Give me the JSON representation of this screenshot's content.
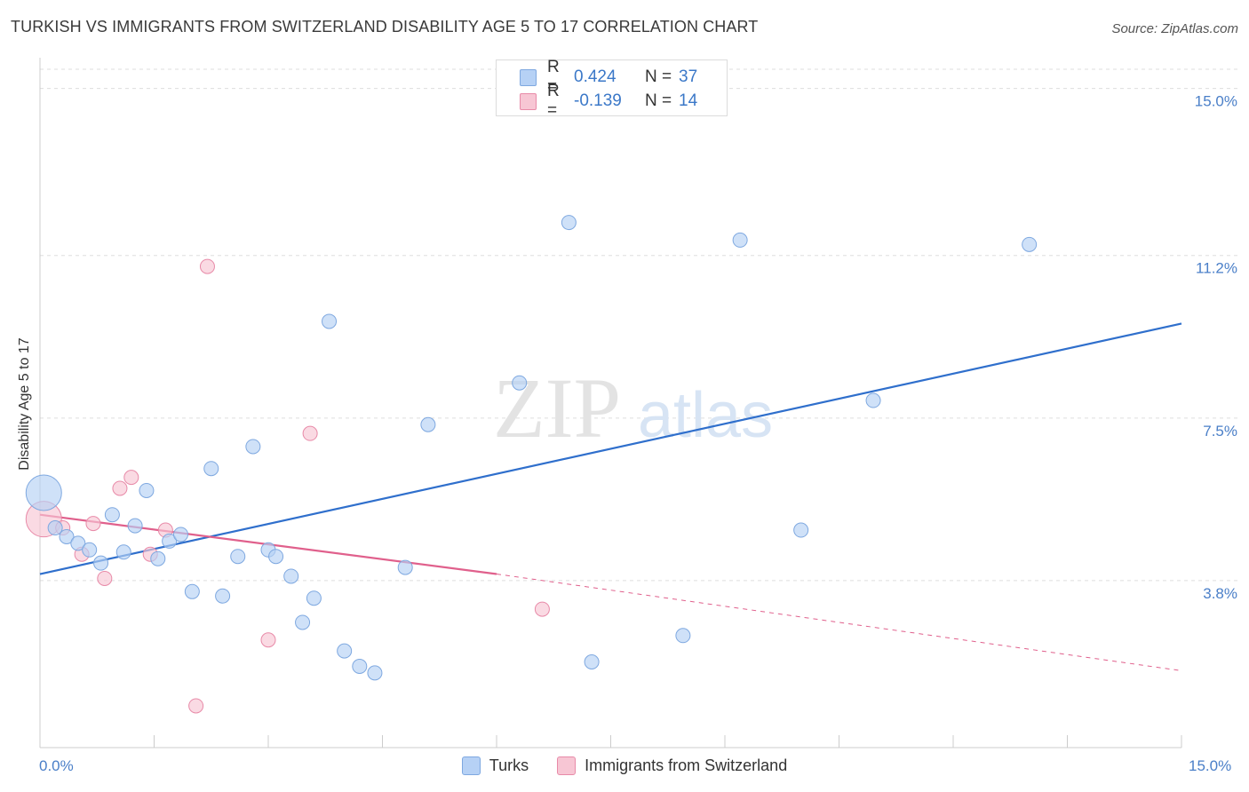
{
  "title": "TURKISH VS IMMIGRANTS FROM SWITZERLAND DISABILITY AGE 5 TO 17 CORRELATION CHART",
  "source": "Source: ZipAtlas.com",
  "watermark": {
    "zip": "ZIP",
    "atlas": "atlas"
  },
  "legend": {
    "rows": [
      {
        "r_label": "R =",
        "r_value": "0.424",
        "n_label": "N =",
        "n_value": "37"
      },
      {
        "r_label": "R =",
        "r_value": "-0.139",
        "n_label": "N =",
        "n_value": "14"
      }
    ]
  },
  "colors": {
    "turks_fill": "#b6d1f5",
    "turks_stroke": "#7ea8e0",
    "turks_line": "#2f6fcc",
    "swiss_fill": "#f7c6d4",
    "swiss_stroke": "#e88aa8",
    "swiss_line": "#e0608c",
    "tick_label": "#4a7fc8",
    "grid": "#dddddd"
  },
  "chart_data": {
    "type": "scatter",
    "title": "TURKISH VS IMMIGRANTS FROM SWITZERLAND DISABILITY AGE 5 TO 17 CORRELATION CHART",
    "xlabel": "",
    "ylabel": "Disability Age 5 to 17",
    "xlim": [
      0,
      15
    ],
    "ylim": [
      0,
      15.7
    ],
    "x_tick_labels": [
      "0.0%",
      "15.0%"
    ],
    "y_ticks": [
      {
        "value": 3.8,
        "label": "3.8%"
      },
      {
        "value": 7.5,
        "label": "7.5%"
      },
      {
        "value": 11.2,
        "label": "11.2%"
      },
      {
        "value": 15.0,
        "label": "15.0%"
      }
    ],
    "series": [
      {
        "name": "Turks",
        "r": 0.424,
        "n": 37,
        "points": [
          {
            "x": 0.05,
            "y": 5.8,
            "size": "large"
          },
          {
            "x": 0.2,
            "y": 5.0
          },
          {
            "x": 0.35,
            "y": 4.8
          },
          {
            "x": 0.5,
            "y": 4.65
          },
          {
            "x": 0.65,
            "y": 4.5
          },
          {
            "x": 0.8,
            "y": 4.2
          },
          {
            "x": 0.95,
            "y": 5.3
          },
          {
            "x": 1.1,
            "y": 4.45
          },
          {
            "x": 1.25,
            "y": 5.05
          },
          {
            "x": 1.4,
            "y": 5.85
          },
          {
            "x": 1.55,
            "y": 4.3
          },
          {
            "x": 1.7,
            "y": 4.7
          },
          {
            "x": 1.85,
            "y": 4.85
          },
          {
            "x": 2.0,
            "y": 3.55
          },
          {
            "x": 2.25,
            "y": 6.35
          },
          {
            "x": 2.4,
            "y": 3.45
          },
          {
            "x": 2.6,
            "y": 4.35
          },
          {
            "x": 2.8,
            "y": 6.85
          },
          {
            "x": 3.0,
            "y": 4.5
          },
          {
            "x": 3.1,
            "y": 4.35
          },
          {
            "x": 3.3,
            "y": 3.9
          },
          {
            "x": 3.45,
            "y": 2.85
          },
          {
            "x": 3.6,
            "y": 3.4
          },
          {
            "x": 3.8,
            "y": 9.7
          },
          {
            "x": 4.0,
            "y": 2.2
          },
          {
            "x": 4.2,
            "y": 1.85
          },
          {
            "x": 4.4,
            "y": 1.7
          },
          {
            "x": 4.8,
            "y": 4.1
          },
          {
            "x": 5.1,
            "y": 7.35
          },
          {
            "x": 6.3,
            "y": 8.3
          },
          {
            "x": 6.95,
            "y": 11.95
          },
          {
            "x": 7.25,
            "y": 1.95
          },
          {
            "x": 8.45,
            "y": 2.55
          },
          {
            "x": 9.2,
            "y": 11.55
          },
          {
            "x": 10.0,
            "y": 4.95
          },
          {
            "x": 10.95,
            "y": 7.9
          },
          {
            "x": 13.0,
            "y": 11.45
          }
        ],
        "trend": {
          "x0": 0,
          "y0": 3.95,
          "x1": 15,
          "y1": 9.65
        }
      },
      {
        "name": "Immigrants from Switzerland",
        "r": -0.139,
        "n": 14,
        "points": [
          {
            "x": 0.05,
            "y": 5.2,
            "size": "large"
          },
          {
            "x": 0.3,
            "y": 5.0
          },
          {
            "x": 0.55,
            "y": 4.4
          },
          {
            "x": 0.7,
            "y": 5.1
          },
          {
            "x": 0.85,
            "y": 3.85
          },
          {
            "x": 1.05,
            "y": 5.9
          },
          {
            "x": 1.2,
            "y": 6.15
          },
          {
            "x": 1.45,
            "y": 4.4
          },
          {
            "x": 1.65,
            "y": 4.95
          },
          {
            "x": 2.05,
            "y": 0.95
          },
          {
            "x": 2.2,
            "y": 10.95
          },
          {
            "x": 3.0,
            "y": 2.45
          },
          {
            "x": 3.55,
            "y": 7.15
          },
          {
            "x": 6.6,
            "y": 3.15
          }
        ],
        "trend": {
          "x0": 0,
          "y0": 5.3,
          "x1": 6.0,
          "y1": 3.95
        },
        "trend_dashed": {
          "x0": 6.0,
          "y0": 3.95,
          "x1": 15,
          "y1": 1.75
        }
      }
    ],
    "legend_position": "top-center"
  }
}
